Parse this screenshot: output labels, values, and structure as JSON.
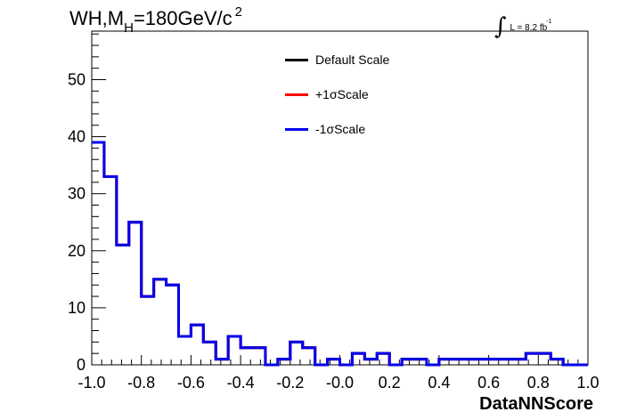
{
  "chart_data": {
    "type": "step-histogram",
    "title": {
      "prefix": "WH,M",
      "subscript": "H",
      "suffix": "=180GeV/c",
      "superscript": "2"
    },
    "luminosity": {
      "symbol": "∫",
      "text": "L = 8.2 fb",
      "superscript": "-1"
    },
    "xlabel": "DataNNScore",
    "ylabel": "",
    "xlim": [
      -1.0,
      1.0
    ],
    "ylim": [
      0,
      58.5
    ],
    "grid": false,
    "legend_position": "top-center",
    "x_tick_labels": [
      "-1.0",
      "-0.8",
      "-0.6",
      "-0.4",
      "-0.2",
      "-0.0",
      "0.2",
      "0.4",
      "0.6",
      "0.8",
      "1.0"
    ],
    "y_tick_labels": [
      "0",
      "10",
      "20",
      "30",
      "40",
      "50"
    ],
    "bin_edges": [
      -1.0,
      -0.95,
      -0.9,
      -0.85,
      -0.8,
      -0.75,
      -0.7,
      -0.65,
      -0.6,
      -0.55,
      -0.5,
      -0.45,
      -0.4,
      -0.35,
      -0.3,
      -0.25,
      -0.2,
      -0.15,
      -0.1,
      -0.05,
      0.0,
      0.05,
      0.1,
      0.15,
      0.2,
      0.25,
      0.3,
      0.35,
      0.4,
      0.45,
      0.5,
      0.55,
      0.6,
      0.65,
      0.7,
      0.75,
      0.8,
      0.85,
      0.9,
      0.95,
      1.0
    ],
    "series": [
      {
        "name": "Default Scale",
        "color": "#000000",
        "values": [
          39,
          33,
          21,
          25,
          12,
          15,
          14,
          5,
          7,
          4,
          1,
          5,
          3,
          3,
          0,
          1,
          4,
          3,
          0,
          1,
          0,
          2,
          1,
          2,
          0,
          1,
          1,
          0,
          1,
          1,
          1,
          1,
          1,
          1,
          1,
          2,
          2,
          1,
          0,
          0
        ]
      },
      {
        "name": "+1σScale",
        "color": "#ff0000",
        "values": [
          39,
          33,
          21,
          25,
          12,
          15,
          14,
          5,
          7,
          4,
          1,
          5,
          3,
          3,
          0,
          1,
          4,
          3,
          0,
          1,
          0,
          2,
          1,
          2,
          0,
          1,
          1,
          0,
          1,
          1,
          1,
          1,
          1,
          1,
          1,
          2,
          2,
          1,
          0,
          0
        ]
      },
      {
        "name": "-1σScale",
        "color": "#0000ee",
        "values": [
          39,
          33,
          21,
          25,
          12,
          15,
          14,
          5,
          7,
          4,
          1,
          5,
          3,
          3,
          0,
          1,
          4,
          3,
          0,
          1,
          0,
          2,
          1,
          2,
          0,
          1,
          1,
          0,
          1,
          1,
          1,
          1,
          1,
          1,
          1,
          2,
          2,
          1,
          0,
          0
        ]
      }
    ]
  }
}
